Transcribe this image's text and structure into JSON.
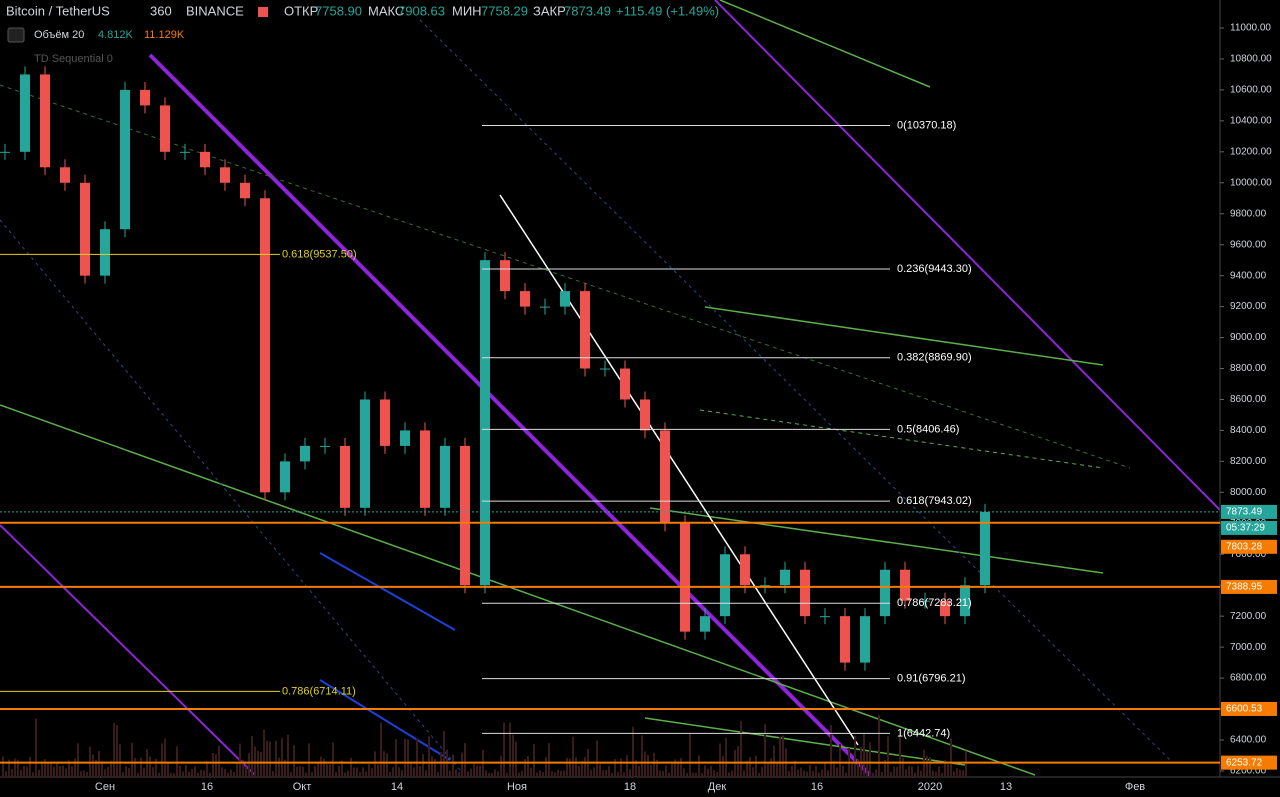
{
  "header": {
    "symbol": "Bitcoin / TetherUS",
    "interval": "360",
    "exchange": "BINANCE",
    "open_label": "ОТКР",
    "open": "7758.90",
    "high_label": "МАКС",
    "high": "7908.63",
    "low_label": "МИН",
    "low": "7758.29",
    "close_label": "ЗАКР",
    "close": "7873.49",
    "change": "+115.49 (+1.49%)",
    "volume_label": "Объём 20",
    "volume_1": "4.812K",
    "volume_2": "11.129K",
    "indicator": "TD Sequential 0"
  },
  "price_axis": {
    "ticks": [
      {
        "value": 11000,
        "label": "11000.00"
      },
      {
        "value": 10800,
        "label": "10800.00"
      },
      {
        "value": 10600,
        "label": "10600.00"
      },
      {
        "value": 10400,
        "label": "10400.00"
      },
      {
        "value": 10200,
        "label": "10200.00"
      },
      {
        "value": 10000,
        "label": "10000.00"
      },
      {
        "value": 9800,
        "label": "9800.00"
      },
      {
        "value": 9600,
        "label": "9600.00"
      },
      {
        "value": 9400,
        "label": "9400.00"
      },
      {
        "value": 9200,
        "label": "9200.00"
      },
      {
        "value": 9000,
        "label": "9000.00"
      },
      {
        "value": 8800,
        "label": "8800.00"
      },
      {
        "value": 8600,
        "label": "8600.00"
      },
      {
        "value": 8400,
        "label": "8400.00"
      },
      {
        "value": 8200,
        "label": "8200.00"
      },
      {
        "value": 8000,
        "label": "8000.00"
      },
      {
        "value": 7800,
        "label": "7800.00"
      },
      {
        "value": 7600,
        "label": "7600.00"
      },
      {
        "value": 7400,
        "label": "7400.00"
      },
      {
        "value": 7200,
        "label": "7200.00"
      },
      {
        "value": 7000,
        "label": "7000.00"
      },
      {
        "value": 6800,
        "label": "6800.00"
      },
      {
        "value": 6600,
        "label": "6600.00"
      },
      {
        "value": 6400,
        "label": "6400.00"
      },
      {
        "value": 6200,
        "label": "6200.00"
      }
    ],
    "tags": [
      {
        "value": 7873.49,
        "label": "7873.49",
        "color": "#26a69a"
      },
      {
        "value": 7803.28,
        "label": "7803.28",
        "color": "#f57c00"
      },
      {
        "value": 7388.95,
        "label": "7388.95",
        "color": "#f57c00"
      },
      {
        "value": 6600.53,
        "label": "6600.53",
        "color": "#f57c00"
      },
      {
        "value": 6253.72,
        "label": "6253.72",
        "color": "#f57c00"
      }
    ],
    "countdown": "05:37:29"
  },
  "time_axis": [
    "Сен",
    "16",
    "Окт",
    "14",
    "Ноя",
    "18",
    "Дек",
    "16",
    "2020",
    "13",
    "Фев"
  ],
  "fib_white": [
    {
      "value": 10370.18,
      "label": "0(10370.18)"
    },
    {
      "value": 9443.3,
      "label": "0.236(9443.30)"
    },
    {
      "value": 8869.9,
      "label": "0.382(8869.90)"
    },
    {
      "value": 8406.46,
      "label": "0.5(8406.46)"
    },
    {
      "value": 7943.02,
      "label": "0.618(7943.02)"
    },
    {
      "value": 7283.21,
      "label": "0.786(7283.21)"
    },
    {
      "value": 6796.21,
      "label": "0.91(6796.21)"
    },
    {
      "value": 6442.74,
      "label": "1(6442.74)"
    }
  ],
  "fib_yellow": [
    {
      "value": 9537.5,
      "label": "0.618(9537.50)"
    },
    {
      "value": 6714.11,
      "label": "0.786(6714.11)"
    }
  ],
  "chart_data": {
    "type": "candlestick",
    "closes": [
      10200,
      10700,
      10100,
      10000,
      9400,
      9700,
      10600,
      10500,
      10200,
      10200,
      10100,
      10000,
      9900,
      8000,
      8200,
      8300,
      8300,
      7900,
      8600,
      8300,
      8400,
      7900,
      8300,
      7400,
      9500,
      9300,
      9200,
      9200,
      9300,
      8800,
      8800,
      8600,
      8400,
      7800,
      7100,
      7200,
      7600,
      7400,
      7400,
      7500,
      7200,
      7200,
      6900,
      7200,
      7500,
      7300,
      7300,
      7200,
      7400,
      7873.49
    ]
  }
}
